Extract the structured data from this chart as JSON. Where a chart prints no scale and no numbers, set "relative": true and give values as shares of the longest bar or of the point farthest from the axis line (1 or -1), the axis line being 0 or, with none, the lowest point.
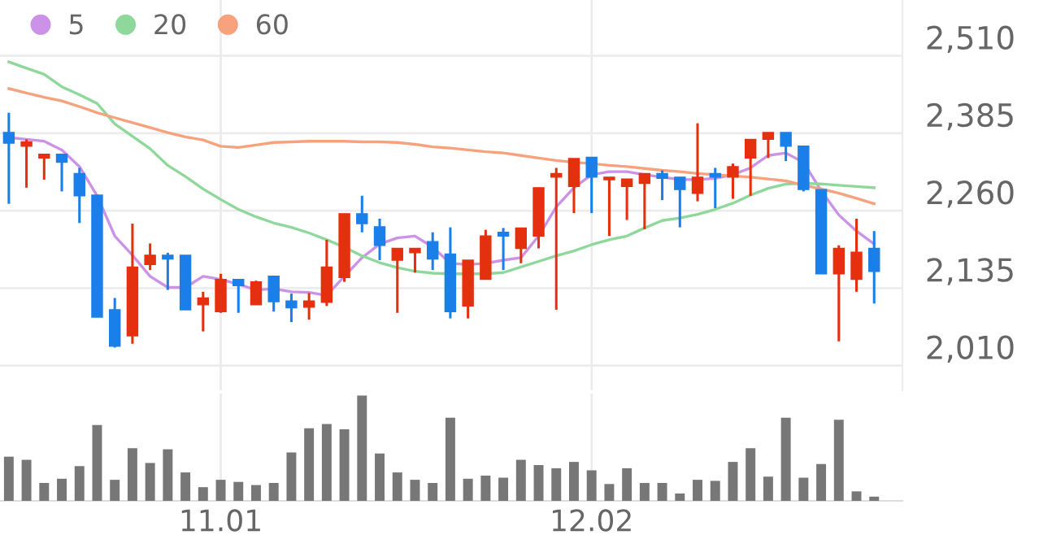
{
  "chart_data": [
    {
      "type": "candlestick",
      "categories": [
        null,
        null,
        null,
        null,
        null,
        null,
        null,
        null,
        null,
        null,
        null,
        null,
        "11.01",
        null,
        null,
        null,
        null,
        null,
        null,
        null,
        null,
        null,
        null,
        null,
        null,
        null,
        null,
        null,
        null,
        null,
        null,
        null,
        null,
        "12.02",
        null,
        null,
        null,
        null,
        null,
        null,
        null,
        null,
        null,
        null,
        null,
        null,
        null,
        null,
        null,
        null
      ],
      "ohlc": [
        [
          2386,
          2418,
          2271,
          2369
        ],
        [
          2364,
          2375,
          2297,
          2371
        ],
        [
          2345,
          2351,
          2310,
          2351
        ],
        [
          2351,
          2351,
          2291,
          2338
        ],
        [
          2320,
          2329,
          2240,
          2284
        ],
        [
          2285,
          2285,
          2088,
          2088
        ],
        [
          2100,
          2119,
          2039,
          2041
        ],
        [
          2058,
          2239,
          2045,
          2169
        ],
        [
          2173,
          2207,
          2164,
          2188
        ],
        [
          2188,
          2192,
          2132,
          2182
        ],
        [
          2188,
          2188,
          2100,
          2100
        ],
        [
          2108,
          2129,
          2065,
          2119
        ],
        [
          2097,
          2158,
          2095,
          2149
        ],
        [
          2149,
          2149,
          2095,
          2139
        ],
        [
          2108,
          2147,
          2108,
          2145
        ],
        [
          2154,
          2154,
          2097,
          2113
        ],
        [
          2114,
          2126,
          2080,
          2103
        ],
        [
          2104,
          2127,
          2084,
          2114
        ],
        [
          2112,
          2213,
          2106,
          2169
        ],
        [
          2152,
          2255,
          2145,
          2255
        ],
        [
          2255,
          2284,
          2225,
          2239
        ],
        [
          2234,
          2247,
          2180,
          2204
        ],
        [
          2180,
          2199,
          2095,
          2199
        ],
        [
          2192,
          2199,
          2160,
          2199
        ],
        [
          2210,
          2225,
          2164,
          2182
        ],
        [
          2190,
          2233,
          2086,
          2097
        ],
        [
          2106,
          2180,
          2086,
          2180
        ],
        [
          2149,
          2229,
          2149,
          2219
        ],
        [
          2225,
          2232,
          2164,
          2219
        ],
        [
          2199,
          2232,
          2175,
          2232
        ],
        [
          2219,
          2297,
          2199,
          2297
        ],
        [
          2314,
          2329,
          2100,
          2320
        ],
        [
          2299,
          2344,
          2256,
          2344
        ],
        [
          2346,
          2346,
          2256,
          2314
        ],
        [
          2310,
          2314,
          2219,
          2314
        ],
        [
          2299,
          2311,
          2245,
          2311
        ],
        [
          2304,
          2320,
          2230,
          2320
        ],
        [
          2320,
          2325,
          2277,
          2312
        ],
        [
          2314,
          2314,
          2233,
          2294
        ],
        [
          2288,
          2401,
          2275,
          2314
        ],
        [
          2320,
          2329,
          2264,
          2314
        ],
        [
          2314,
          2336,
          2279,
          2331
        ],
        [
          2345,
          2375,
          2284,
          2375
        ],
        [
          2375,
          2386,
          2345,
          2386
        ],
        [
          2386,
          2386,
          2340,
          2364
        ],
        [
          2364,
          2364,
          2291,
          2294
        ],
        [
          2294,
          2294,
          2158,
          2158
        ],
        [
          2158,
          2204,
          2049,
          2199
        ],
        [
          2149,
          2247,
          2129,
          2193
        ],
        [
          2199,
          2227,
          2110,
          2162
        ]
      ],
      "colors": [
        "#1a7fe8",
        "#e5300f",
        "#e5300f",
        "#1a7fe8",
        "#1a7fe8",
        "#1a7fe8",
        "#1a7fe8",
        "#e5300f",
        "#e5300f",
        "#1a7fe8",
        "#1a7fe8",
        "#e5300f",
        "#e5300f",
        "#1a7fe8",
        "#e5300f",
        "#1a7fe8",
        "#1a7fe8",
        "#e5300f",
        "#e5300f",
        "#e5300f",
        "#1a7fe8",
        "#1a7fe8",
        "#e5300f",
        "#e5300f",
        "#1a7fe8",
        "#1a7fe8",
        "#e5300f",
        "#e5300f",
        "#1a7fe8",
        "#e5300f",
        "#e5300f",
        "#e5300f",
        "#e5300f",
        "#1a7fe8",
        "#e5300f",
        "#e5300f",
        "#e5300f",
        "#1a7fe8",
        "#1a7fe8",
        "#e5300f",
        "#1a7fe8",
        "#e5300f",
        "#e5300f",
        "#e5300f",
        "#1a7fe8",
        "#1a7fe8",
        "#1a7fe8",
        "#e5300f",
        "#e5300f",
        "#1a7fe8"
      ],
      "series": [
        {
          "name": "5",
          "type": "line",
          "color": "#cc92e8",
          "values": [
            2378,
            2375,
            2372,
            2358,
            2331,
            2284,
            2219,
            2188,
            2154,
            2136,
            2136,
            2154,
            2149,
            2141,
            2132,
            2134,
            2129,
            2128,
            2123,
            2154,
            2184,
            2206,
            2216,
            2219,
            2201,
            2175,
            2173,
            2175,
            2180,
            2184,
            2219,
            2266,
            2297,
            2318,
            2323,
            2323,
            2318,
            2314,
            2310,
            2310,
            2312,
            2318,
            2329,
            2349,
            2353,
            2338,
            2292,
            2253,
            2227,
            2206
          ]
        },
        {
          "name": "20",
          "type": "line",
          "color": "#8fd89b",
          "values": [
            2500,
            2490,
            2480,
            2460,
            2447,
            2433,
            2400,
            2380,
            2360,
            2333,
            2315,
            2295,
            2278,
            2262,
            2250,
            2240,
            2233,
            2224,
            2213,
            2201,
            2187,
            2176,
            2168,
            2162,
            2159,
            2158,
            2158,
            2158,
            2160,
            2169,
            2178,
            2187,
            2195,
            2205,
            2213,
            2219,
            2232,
            2244,
            2248,
            2254,
            2262,
            2272,
            2285,
            2296,
            2303,
            2304,
            2303,
            2301,
            2299,
            2297
          ]
        },
        {
          "name": "60",
          "type": "line",
          "color": "#f7a27c",
          "values": [
            2457,
            2450,
            2443,
            2437,
            2428,
            2418,
            2410,
            2402,
            2394,
            2386,
            2379,
            2374,
            2364,
            2362,
            2366,
            2370,
            2371,
            2372,
            2372,
            2372,
            2371,
            2371,
            2370,
            2367,
            2363,
            2361,
            2358,
            2355,
            2353,
            2349,
            2345,
            2341,
            2338,
            2336,
            2333,
            2331,
            2328,
            2325,
            2323,
            2320,
            2318,
            2316,
            2314,
            2311,
            2308,
            2301,
            2295,
            2288,
            2280,
            2271
          ]
        }
      ],
      "ylim": [
        1970,
        2600
      ],
      "yticks": [
        {
          "value": 2010,
          "label": "2,010"
        },
        {
          "value": 2135,
          "label": "2,135"
        },
        {
          "value": 2260,
          "label": "2,260"
        },
        {
          "value": 2385,
          "label": "2,385"
        },
        {
          "value": 2510,
          "label": "2,510"
        }
      ],
      "grid": true,
      "legend": "top left",
      "marker": "none",
      "tick_labels": "y"
    },
    {
      "type": "bar",
      "relative": true,
      "color": "#777777",
      "grid": "x",
      "categories": [
        null,
        null,
        null,
        null,
        null,
        null,
        null,
        null,
        null,
        null,
        null,
        null,
        "11.01",
        null,
        null,
        null,
        null,
        null,
        null,
        null,
        null,
        null,
        null,
        null,
        null,
        null,
        null,
        null,
        null,
        null,
        null,
        null,
        null,
        "12.02",
        null,
        null,
        null,
        null,
        null,
        null,
        null,
        null,
        null,
        null,
        null,
        null,
        null,
        null,
        null,
        null
      ],
      "values": [
        0.42,
        0.39,
        0.17,
        0.21,
        0.33,
        0.72,
        0.2,
        0.5,
        0.36,
        0.49,
        0.27,
        0.13,
        0.2,
        0.18,
        0.15,
        0.17,
        0.46,
        0.69,
        0.73,
        0.68,
        1,
        0.45,
        0.27,
        0.2,
        0.17,
        0.79,
        0.21,
        0.24,
        0.22,
        0.39,
        0.34,
        0.31,
        0.37,
        0.29,
        0.16,
        0.31,
        0.17,
        0.17,
        0.07,
        0.2,
        0.19,
        0.37,
        0.5,
        0.23,
        0.79,
        0.22,
        0.35,
        0.77,
        0.09,
        0.04
      ]
    }
  ]
}
